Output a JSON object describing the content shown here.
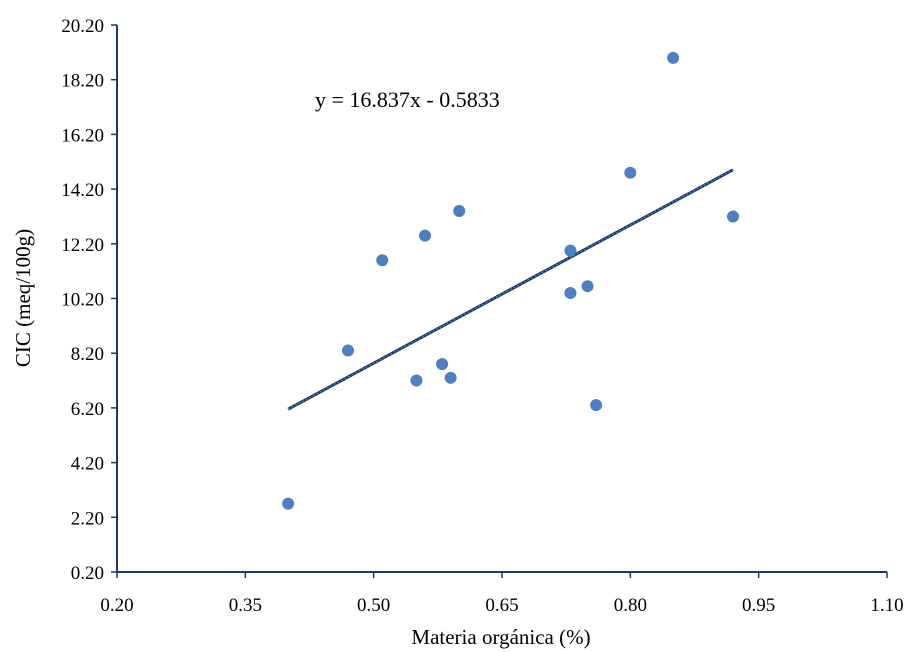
{
  "chart_data": {
    "type": "scatter",
    "title": "",
    "xlabel": "Materia orgánica (%)",
    "ylabel": "CIC (meq/100g)",
    "xlim": [
      0.2,
      1.1
    ],
    "ylim": [
      0.2,
      20.2
    ],
    "x_ticks": [
      "0.20",
      "0.35",
      "0.50",
      "0.65",
      "0.80",
      "0.95",
      "1.10"
    ],
    "y_ticks": [
      "0.20",
      "2.20",
      "4.20",
      "6.20",
      "8.20",
      "10.20",
      "12.20",
      "14.20",
      "16.20",
      "18.20",
      "20.20"
    ],
    "grid": false,
    "legend": "none",
    "series": [
      {
        "points": [
          {
            "x": 0.4,
            "y": 2.7
          },
          {
            "x": 0.47,
            "y": 8.3
          },
          {
            "x": 0.51,
            "y": 11.6
          },
          {
            "x": 0.55,
            "y": 7.2
          },
          {
            "x": 0.56,
            "y": 12.5
          },
          {
            "x": 0.58,
            "y": 7.8
          },
          {
            "x": 0.59,
            "y": 7.3
          },
          {
            "x": 0.6,
            "y": 13.4
          },
          {
            "x": 0.73,
            "y": 11.95
          },
          {
            "x": 0.73,
            "y": 10.4
          },
          {
            "x": 0.75,
            "y": 10.65
          },
          {
            "x": 0.76,
            "y": 6.3
          },
          {
            "x": 0.8,
            "y": 14.8
          },
          {
            "x": 0.85,
            "y": 19.0
          },
          {
            "x": 0.92,
            "y": 13.2
          }
        ],
        "color": "#4f7fc0"
      }
    ],
    "trendline": {
      "type": "linear",
      "slope": 16.837,
      "intercept": -0.5833,
      "x_range": [
        0.4,
        0.92
      ],
      "equation": "y = 16.837x - 0.5833",
      "color": "#1f3864"
    },
    "axis_color": "#1f3864"
  }
}
